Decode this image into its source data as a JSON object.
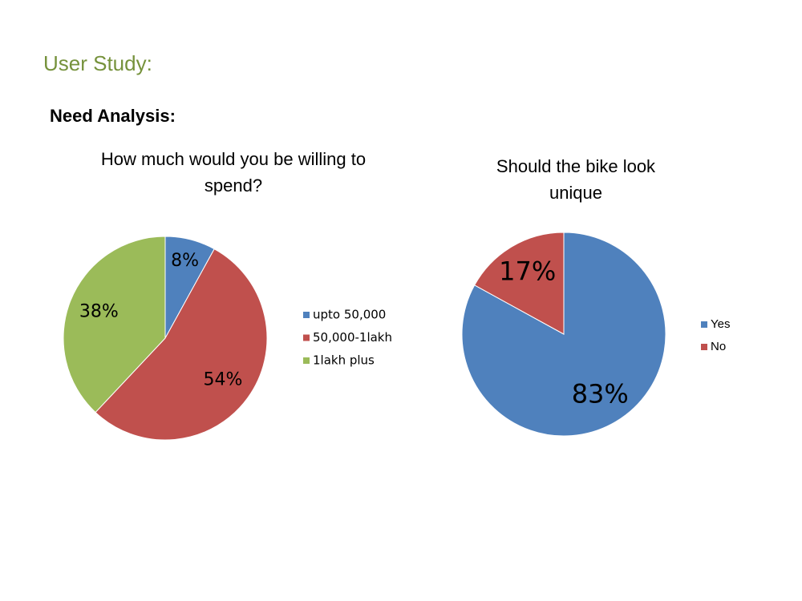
{
  "header": {
    "title": "User Study:",
    "subtitle": "Need Analysis:"
  },
  "chart_data": [
    {
      "type": "pie",
      "title": "How much would you be willing to spend?",
      "categories": [
        "upto 50,000",
        "50,000-1lakh",
        "1lakh plus"
      ],
      "values": [
        8,
        54,
        38
      ],
      "value_labels": [
        "8%",
        "54%",
        "38%"
      ],
      "colors": [
        "#4f81bd",
        "#c0504d",
        "#9bbb59"
      ],
      "legend": "right"
    },
    {
      "type": "pie",
      "title": "Should the bike look unique",
      "categories": [
        "Yes",
        "No"
      ],
      "values": [
        83,
        17
      ],
      "value_labels": [
        "83%",
        "17%"
      ],
      "colors": [
        "#4f81bd",
        "#c0504d"
      ],
      "legend": "right"
    }
  ]
}
